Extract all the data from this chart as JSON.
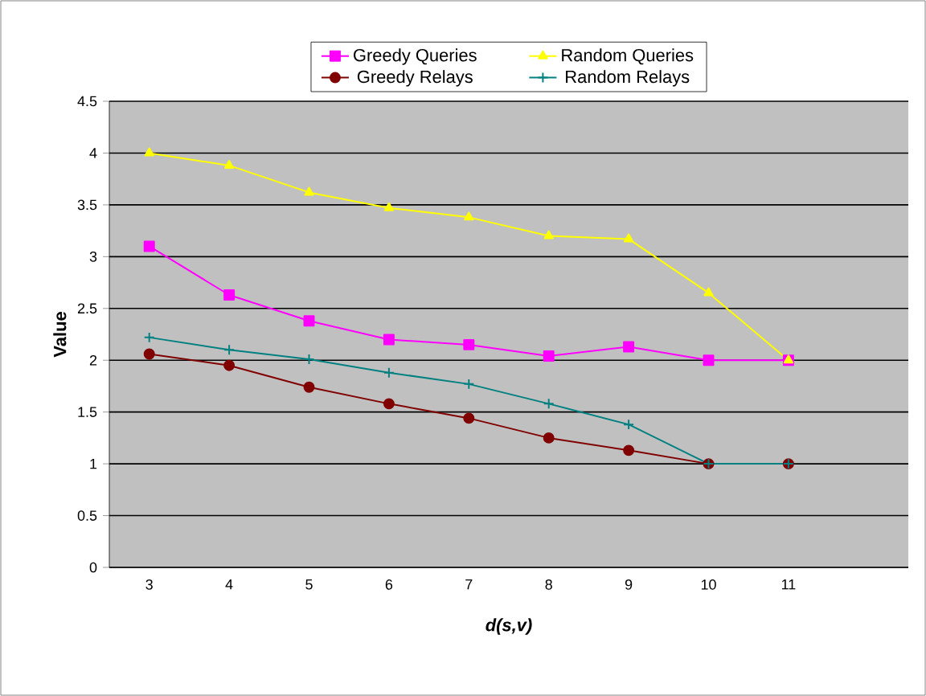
{
  "chart_data": {
    "type": "line",
    "xlabel": "*d(s,v)*",
    "ylabel": "Value",
    "categories": [
      "3",
      "4",
      "5",
      "6",
      "7",
      "8",
      "9",
      "10",
      "11",
      null
    ],
    "series": [
      {
        "name": "Greedy Queries",
        "color": "#ff00ff",
        "marker": "square",
        "values": [
          3.1,
          2.63,
          2.38,
          2.2,
          2.15,
          2.04,
          2.13,
          2.0,
          2.0,
          null
        ]
      },
      {
        "name": "Random Queries",
        "color": "#ffff00",
        "marker": "triangle",
        "values": [
          4.0,
          3.88,
          3.62,
          3.47,
          3.38,
          3.2,
          3.17,
          2.65,
          2.0,
          null
        ]
      },
      {
        "name": "Greedy Relays",
        "color": "#800000",
        "marker": "circle",
        "values": [
          2.06,
          1.95,
          1.74,
          1.58,
          1.44,
          1.25,
          1.13,
          1.0,
          1.0,
          null
        ]
      },
      {
        "name": "Random Relays",
        "color": "#008080",
        "marker": "cross",
        "values": [
          2.22,
          2.1,
          2.01,
          1.88,
          1.77,
          1.58,
          1.38,
          1.0,
          1.0,
          null
        ]
      }
    ],
    "ylim": [
      0,
      4.5
    ],
    "yticks": [
      0,
      0.5,
      1,
      1.5,
      2,
      2.5,
      3,
      3.5,
      4,
      4.5
    ],
    "grid": "y",
    "legend": "top",
    "line_style": "solid"
  }
}
